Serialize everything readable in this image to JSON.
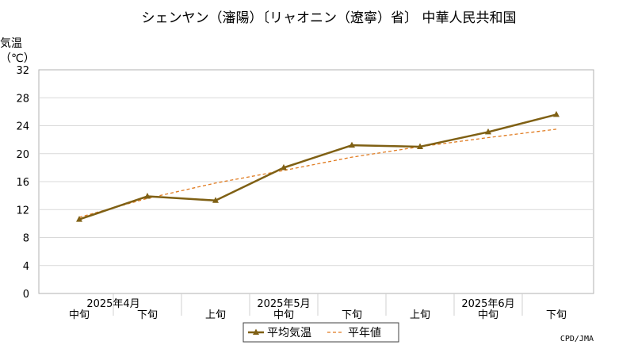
{
  "chart_data": {
    "type": "line",
    "title": "シェンヤン（瀋陽）〔リャオニン（遼寧）省〕 中華人民共和国",
    "ylabel_line1": "気温",
    "ylabel_line2": "（℃）",
    "ylim": [
      0,
      32
    ],
    "yticks": [
      0,
      4,
      8,
      12,
      16,
      20,
      24,
      28,
      32
    ],
    "grid": true,
    "x": [
      "2025年4月 中旬",
      "2025年4月 下旬",
      "2025年5月 上旬",
      "2025年5月 中旬",
      "2025年5月 下旬",
      "2025年6月 上旬",
      "2025年6月 中旬",
      "2025年6月 下旬"
    ],
    "x_tick_labels": [
      "中旬",
      "下旬",
      "上旬",
      "中旬",
      "下旬",
      "上旬",
      "中旬",
      "下旬"
    ],
    "month_labels": [
      {
        "label": "2025年4月",
        "at": 0.5
      },
      {
        "label": "2025年5月",
        "at": 3
      },
      {
        "label": "2025年6月",
        "at": 6
      }
    ],
    "series": [
      {
        "name": "平均気温",
        "values": [
          10.6,
          13.9,
          13.3,
          18.0,
          21.2,
          21.0,
          23.1,
          25.6
        ],
        "color": "#7f6014",
        "style": "solid",
        "marker": "triangle"
      },
      {
        "name": "平年値",
        "values": [
          10.9,
          13.6,
          15.8,
          17.6,
          19.5,
          21.0,
          22.3,
          23.5
        ],
        "color": "#e07b20",
        "style": "dashed"
      }
    ],
    "legend_position": "bottom-center",
    "credit": "CPD/JMA"
  }
}
